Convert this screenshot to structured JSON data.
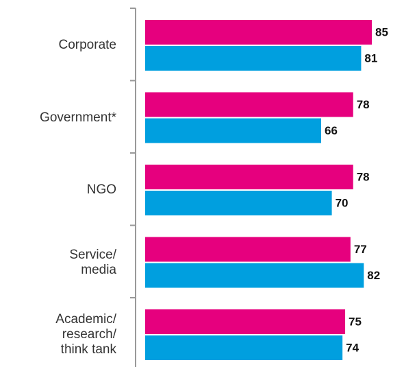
{
  "chart_data": {
    "type": "bar",
    "orientation": "horizontal",
    "categories": [
      "Corporate",
      "Government*",
      "NGO",
      "Service/\nmedia",
      "Academic/\nresearch/\nthink tank"
    ],
    "series": [
      {
        "color": "#e6007e",
        "values": [
          85,
          78,
          78,
          77,
          75
        ]
      },
      {
        "color": "#009fdf",
        "values": [
          81,
          66,
          70,
          82,
          74
        ]
      }
    ]
  }
}
